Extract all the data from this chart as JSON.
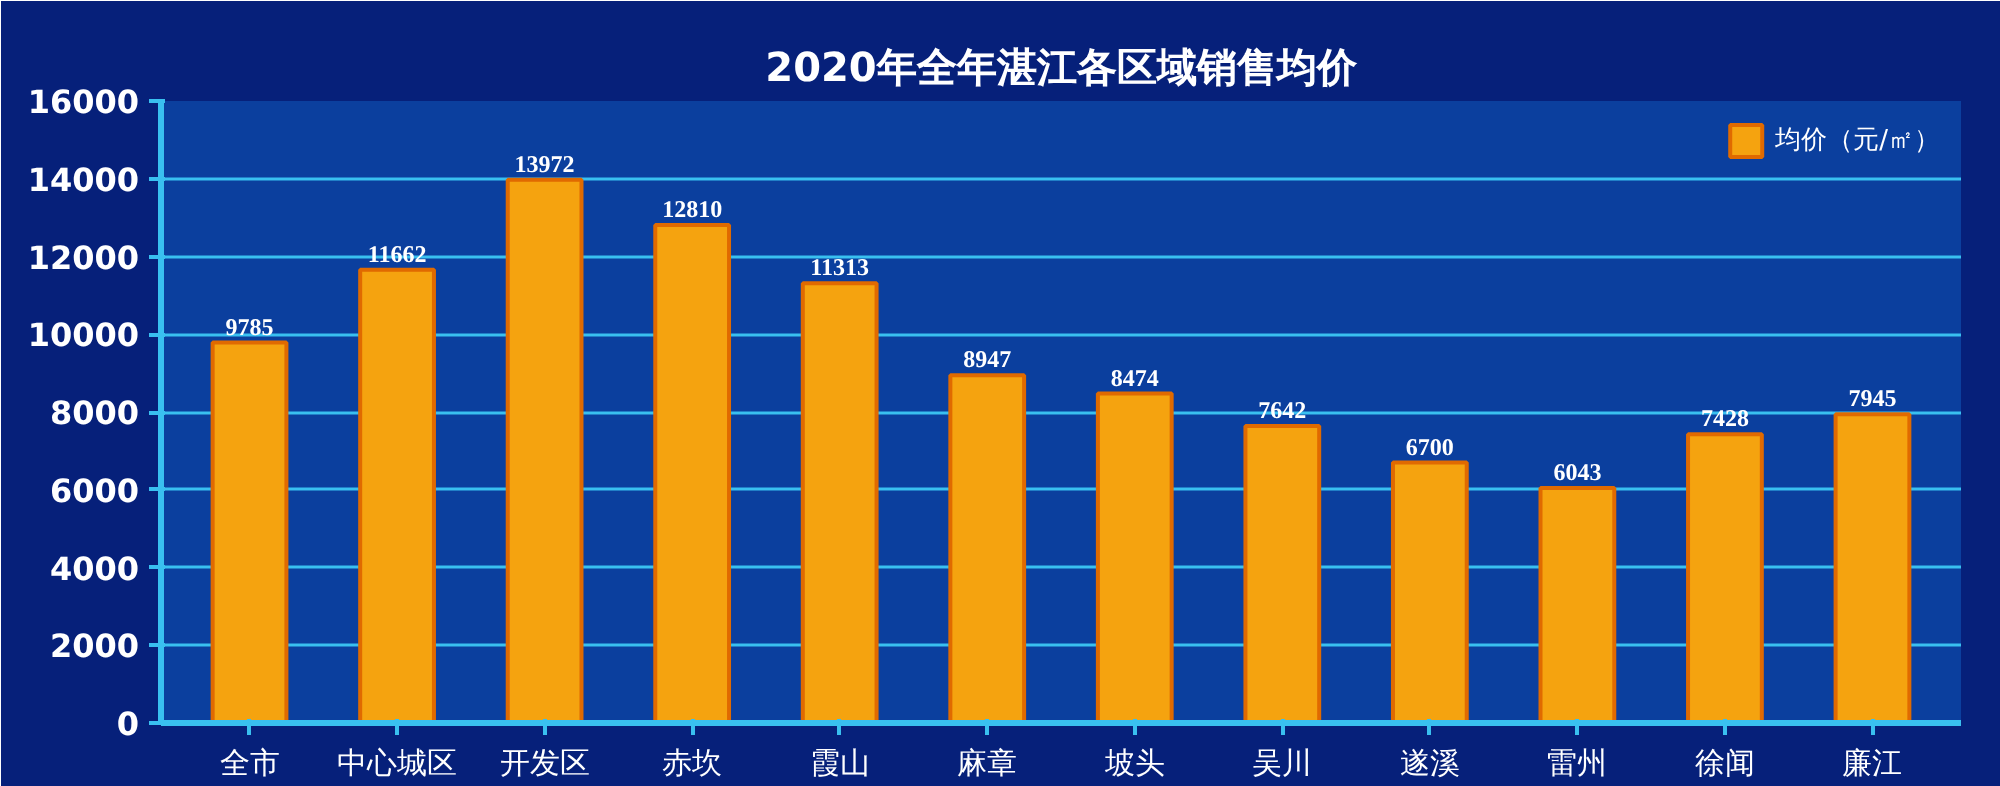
{
  "chart_data": {
    "type": "bar",
    "title": "2020年全年湛江各区域销售均价",
    "categories": [
      "全市",
      "中心城区",
      "开发区",
      "赤坎",
      "霞山",
      "麻章",
      "坡头",
      "吴川",
      "遂溪",
      "雷州",
      "徐闻",
      "廉江"
    ],
    "series": [
      {
        "name": "均价（元/㎡）",
        "color": "#f5a30f",
        "values": [
          9785,
          11662,
          13972,
          12810,
          11313,
          8947,
          8474,
          7642,
          6700,
          6043,
          7428,
          7945
        ]
      }
    ],
    "ylim": [
      0,
      16000
    ],
    "yticks": [
      0,
      2000,
      4000,
      6000,
      8000,
      10000,
      12000,
      14000,
      16000
    ],
    "grid": "y",
    "legend": "top right",
    "data_labels": true
  }
}
